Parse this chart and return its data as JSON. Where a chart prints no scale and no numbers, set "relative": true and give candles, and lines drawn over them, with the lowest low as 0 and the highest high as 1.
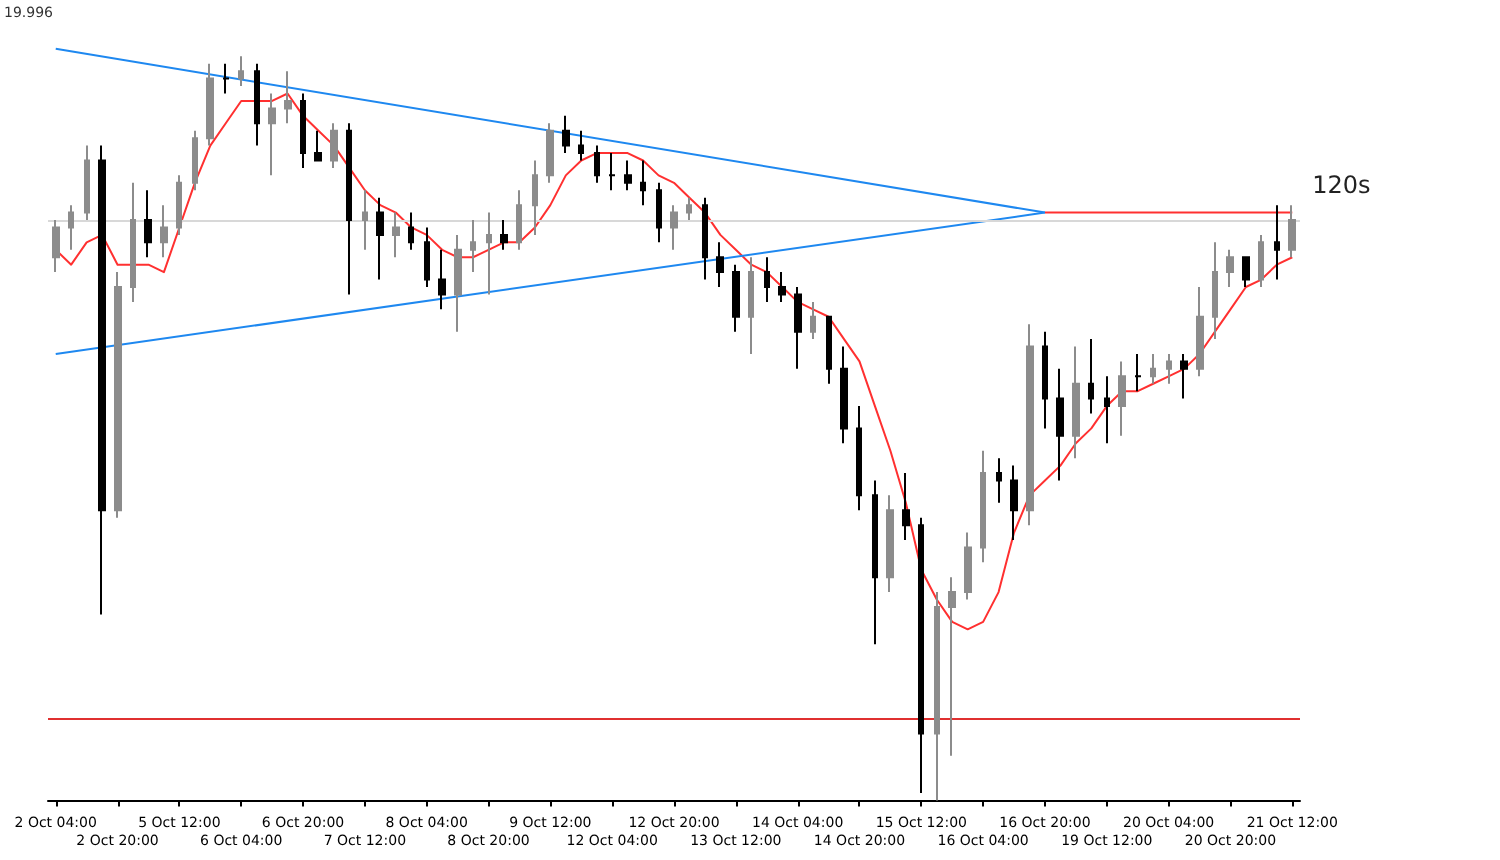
{
  "chart_data": {
    "type": "candlestick",
    "relative": true,
    "tick_labels": "x",
    "categories": [
      "2 Oct 04:00",
      null,
      null,
      null,
      "2 Oct 20:00",
      null,
      null,
      null,
      "5 Oct 12:00",
      null,
      null,
      null,
      "6 Oct 04:00",
      null,
      null,
      null,
      "6 Oct 20:00",
      null,
      null,
      null,
      "7 Oct 12:00",
      null,
      null,
      null,
      "8 Oct 04:00",
      null,
      null,
      null,
      "8 Oct 20:00",
      null,
      null,
      null,
      "9 Oct 12:00",
      null,
      null,
      null,
      "12 Oct 04:00",
      null,
      null,
      null,
      "12 Oct 20:00",
      null,
      null,
      null,
      "13 Oct 12:00",
      null,
      null,
      null,
      "14 Oct 04:00",
      null,
      null,
      null,
      "14 Oct 20:00",
      null,
      null,
      null,
      "15 Oct 12:00",
      null,
      null,
      null,
      "16 Oct 04:00",
      null,
      null,
      null,
      "16 Oct 20:00",
      null,
      null,
      null,
      "19 Oct 12:00",
      null,
      null,
      null,
      "20 Oct 04:00",
      null,
      null,
      null,
      "20 Oct 20:00",
      null,
      null,
      null,
      "21 Oct 12:00"
    ],
    "series": [
      {
        "colors": [
          "#8c8c8c",
          "#8c8c8c",
          "#8c8c8c",
          "#000000",
          "#8c8c8c",
          "#8c8c8c",
          "#000000",
          "#8c8c8c",
          "#8c8c8c",
          "#8c8c8c",
          "#8c8c8c",
          "#000000",
          "#8c8c8c",
          "#000000",
          "#8c8c8c",
          "#8c8c8c",
          "#000000",
          "#000000",
          "#8c8c8c",
          "#000000",
          "#8c8c8c",
          "#000000",
          "#8c8c8c",
          "#000000",
          "#000000",
          "#000000",
          "#8c8c8c",
          "#8c8c8c",
          "#8c8c8c",
          "#000000",
          "#8c8c8c",
          "#8c8c8c",
          "#8c8c8c",
          "#000000",
          "#000000",
          "#000000",
          "#000000",
          "#000000",
          "#000000",
          "#000000",
          "#8c8c8c",
          "#8c8c8c",
          "#000000",
          "#000000",
          "#000000",
          "#8c8c8c",
          "#000000",
          "#000000",
          "#000000",
          "#8c8c8c",
          "#000000",
          "#000000",
          "#000000",
          "#000000",
          "#8c8c8c",
          "#000000",
          "#000000",
          "#8c8c8c",
          "#8c8c8c",
          "#8c8c8c",
          "#8c8c8c",
          "#000000",
          "#000000",
          "#8c8c8c",
          "#000000",
          "#000000",
          "#8c8c8c",
          "#000000",
          "#000000",
          "#8c8c8c",
          "#000000",
          "#8c8c8c",
          "#8c8c8c",
          "#000000",
          "#8c8c8c",
          "#8c8c8c",
          "#8c8c8c",
          "#000000",
          "#8c8c8c",
          "#000000",
          "#8c8c8c"
        ],
        "ohlc": [
          [
            0.73,
            0.78,
            0.71,
            0.77
          ],
          [
            0.77,
            0.8,
            0.74,
            0.79
          ],
          [
            0.79,
            0.88,
            0.78,
            0.86
          ],
          [
            0.86,
            0.88,
            0.25,
            0.39
          ],
          [
            0.39,
            0.71,
            0.38,
            0.69
          ],
          [
            0.69,
            0.83,
            0.67,
            0.78
          ],
          [
            0.78,
            0.82,
            0.73,
            0.75
          ],
          [
            0.75,
            0.8,
            0.73,
            0.77
          ],
          [
            0.77,
            0.84,
            0.76,
            0.83
          ],
          [
            0.83,
            0.9,
            0.82,
            0.89
          ],
          [
            0.89,
            0.99,
            0.88,
            0.97
          ],
          [
            0.97,
            0.99,
            0.95,
            0.97
          ],
          [
            0.97,
            1.0,
            0.96,
            0.98
          ],
          [
            0.98,
            0.99,
            0.88,
            0.91
          ],
          [
            0.91,
            0.95,
            0.84,
            0.93
          ],
          [
            0.93,
            0.98,
            0.91,
            0.94
          ],
          [
            0.94,
            0.95,
            0.85,
            0.87
          ],
          [
            0.87,
            0.9,
            0.86,
            0.86
          ],
          [
            0.86,
            0.91,
            0.85,
            0.9
          ],
          [
            0.9,
            0.91,
            0.68,
            0.78
          ],
          [
            0.78,
            0.82,
            0.74,
            0.79
          ],
          [
            0.79,
            0.81,
            0.7,
            0.76
          ],
          [
            0.76,
            0.79,
            0.73,
            0.77
          ],
          [
            0.77,
            0.79,
            0.74,
            0.75
          ],
          [
            0.75,
            0.77,
            0.69,
            0.7
          ],
          [
            0.7,
            0.74,
            0.66,
            0.68
          ],
          [
            0.68,
            0.76,
            0.63,
            0.74
          ],
          [
            0.74,
            0.78,
            0.71,
            0.75
          ],
          [
            0.75,
            0.79,
            0.68,
            0.76
          ],
          [
            0.76,
            0.78,
            0.74,
            0.75
          ],
          [
            0.75,
            0.82,
            0.74,
            0.8
          ],
          [
            0.8,
            0.86,
            0.76,
            0.84
          ],
          [
            0.84,
            0.91,
            0.83,
            0.9
          ],
          [
            0.9,
            0.92,
            0.87,
            0.88
          ],
          [
            0.88,
            0.9,
            0.86,
            0.87
          ],
          [
            0.87,
            0.88,
            0.83,
            0.84
          ],
          [
            0.84,
            0.87,
            0.82,
            0.84
          ],
          [
            0.84,
            0.86,
            0.82,
            0.83
          ],
          [
            0.83,
            0.86,
            0.8,
            0.82
          ],
          [
            0.82,
            0.83,
            0.75,
            0.77
          ],
          [
            0.77,
            0.8,
            0.74,
            0.79
          ],
          [
            0.79,
            0.81,
            0.78,
            0.8
          ],
          [
            0.8,
            0.81,
            0.7,
            0.73
          ],
          [
            0.73,
            0.75,
            0.69,
            0.71
          ],
          [
            0.71,
            0.72,
            0.63,
            0.65
          ],
          [
            0.65,
            0.73,
            0.6,
            0.71
          ],
          [
            0.71,
            0.73,
            0.67,
            0.69
          ],
          [
            0.69,
            0.71,
            0.67,
            0.68
          ],
          [
            0.68,
            0.69,
            0.58,
            0.63
          ],
          [
            0.63,
            0.67,
            0.62,
            0.65
          ],
          [
            0.65,
            0.65,
            0.56,
            0.58
          ],
          [
            0.58,
            0.61,
            0.48,
            0.5
          ],
          [
            0.5,
            0.53,
            0.39,
            0.41
          ],
          [
            0.41,
            0.43,
            0.21,
            0.3
          ],
          [
            0.3,
            0.41,
            0.28,
            0.39
          ],
          [
            0.39,
            0.44,
            0.35,
            0.37
          ],
          [
            0.37,
            0.38,
            0.01,
            0.09
          ],
          [
            0.09,
            0.28,
            0.0,
            0.26
          ],
          [
            0.26,
            0.3,
            0.06,
            0.28
          ],
          [
            0.28,
            0.36,
            0.27,
            0.34
          ],
          [
            0.34,
            0.47,
            0.32,
            0.44
          ],
          [
            0.44,
            0.46,
            0.4,
            0.43
          ],
          [
            0.43,
            0.45,
            0.35,
            0.39
          ],
          [
            0.39,
            0.64,
            0.37,
            0.61
          ],
          [
            0.61,
            0.63,
            0.5,
            0.54
          ],
          [
            0.54,
            0.58,
            0.43,
            0.49
          ],
          [
            0.49,
            0.61,
            0.46,
            0.56
          ],
          [
            0.56,
            0.62,
            0.52,
            0.54
          ],
          [
            0.54,
            0.57,
            0.48,
            0.53
          ],
          [
            0.53,
            0.59,
            0.49,
            0.57
          ],
          [
            0.57,
            0.6,
            0.55,
            0.57
          ],
          [
            0.57,
            0.6,
            0.56,
            0.58
          ],
          [
            0.58,
            0.6,
            0.56,
            0.59
          ],
          [
            0.59,
            0.6,
            0.54,
            0.58
          ],
          [
            0.58,
            0.69,
            0.57,
            0.65
          ],
          [
            0.65,
            0.75,
            0.62,
            0.71
          ],
          [
            0.71,
            0.74,
            0.69,
            0.73
          ],
          [
            0.73,
            0.73,
            0.69,
            0.7
          ],
          [
            0.7,
            0.76,
            0.69,
            0.75
          ],
          [
            0.75,
            0.8,
            0.7,
            0.74
          ],
          [
            0.74,
            0.8,
            0.73,
            0.78
          ]
        ]
      },
      {
        "type": "line",
        "color": "#ff3030",
        "values": [
          0.74,
          0.72,
          0.75,
          0.76,
          0.72,
          0.72,
          0.72,
          0.71,
          0.77,
          0.83,
          0.88,
          0.91,
          0.94,
          0.94,
          0.94,
          0.95,
          0.92,
          0.9,
          0.88,
          0.85,
          0.82,
          0.8,
          0.79,
          0.77,
          0.76,
          0.74,
          0.73,
          0.73,
          0.74,
          0.75,
          0.75,
          0.77,
          0.8,
          0.84,
          0.86,
          0.87,
          0.87,
          0.87,
          0.86,
          0.84,
          0.83,
          0.81,
          0.79,
          0.76,
          0.74,
          0.72,
          0.71,
          0.69,
          0.67,
          0.66,
          0.65,
          0.62,
          0.59,
          0.53,
          0.47,
          0.4,
          0.31,
          0.27,
          0.24,
          0.23,
          0.24,
          0.28,
          0.36,
          0.41,
          0.43,
          0.45,
          0.48,
          0.5,
          0.53,
          0.55,
          0.55,
          0.56,
          0.57,
          0.58,
          0.6,
          0.63,
          0.66,
          0.69,
          0.7,
          0.72,
          0.73
        ]
      },
      {
        "type": "line",
        "color": "#1e88f0",
        "x": [
          "2 Oct 04:00",
          "16 Oct 20:00"
        ],
        "values": [
          1.01,
          0.79
        ]
      },
      {
        "type": "line",
        "color": "#1e88f0",
        "x": [
          "2 Oct 04:00",
          "16 Oct 20:00"
        ],
        "values": [
          0.6,
          0.79
        ]
      },
      {
        "type": "line",
        "color": "#ff3030",
        "x": [
          "16 Oct 20:00",
          "21 Oct 12:00"
        ],
        "values": [
          0.79,
          0.79
        ]
      }
    ],
    "ref_lines": [
      {
        "axis": "y",
        "value": 0.11,
        "color": "#e03030"
      },
      {
        "axis": "y",
        "value": 0.78,
        "color": "#d8d8d8"
      }
    ],
    "annotations": [
      "19.996",
      {
        "text": "120s",
        "x": "21 Oct 12:00",
        "y": 0.79
      }
    ]
  }
}
